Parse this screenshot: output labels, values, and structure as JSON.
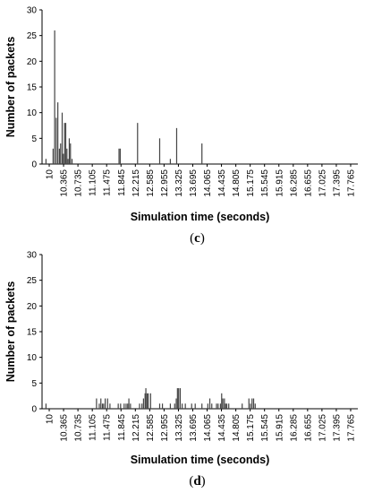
{
  "chart_data": [
    {
      "type": "bar",
      "panel_label": "c",
      "xlabel": "Simulation time (seconds)",
      "ylabel": "Number of packets",
      "ylim": [
        0,
        30
      ],
      "y_ticks": [
        0,
        5,
        10,
        15,
        20,
        25,
        30
      ],
      "x_ticks": [
        "10",
        "10.365",
        "10.735",
        "11.105",
        "11.475",
        "11.845",
        "12.215",
        "12.585",
        "12.955",
        "13.325",
        "13.695",
        "14.065",
        "14.435",
        "14.805",
        "15.175",
        "15.545",
        "15.915",
        "16.285",
        "16.655",
        "17.025",
        "17.395",
        "17.765"
      ],
      "xlim": [
        10.0,
        18.0
      ],
      "grid": false,
      "legend": "none",
      "bar_color": "#444444",
      "x": [
        10.1,
        10.28,
        10.32,
        10.36,
        10.4,
        10.44,
        10.47,
        10.51,
        10.54,
        10.57,
        10.6,
        10.63,
        10.66,
        10.69,
        10.72,
        10.76,
        11.95,
        11.98,
        12.42,
        12.98,
        13.25,
        13.41,
        14.05
      ],
      "values": [
        1,
        3,
        26,
        9,
        12,
        3,
        4,
        10,
        2,
        8,
        8,
        3,
        1,
        5,
        4,
        1,
        3,
        3,
        8,
        5,
        1,
        7,
        4
      ]
    },
    {
      "type": "bar",
      "panel_label": "d",
      "xlabel": "Simulation time (seconds)",
      "ylabel": "Number of packets",
      "ylim": [
        0,
        30
      ],
      "y_ticks": [
        0,
        5,
        10,
        15,
        20,
        25,
        30
      ],
      "x_ticks": [
        "10",
        "10.365",
        "10.735",
        "11.105",
        "11.475",
        "11.845",
        "12.215",
        "12.585",
        "12.955",
        "13.325",
        "13.695",
        "14.065",
        "14.435",
        "14.805",
        "15.175",
        "15.545",
        "15.915",
        "16.285",
        "16.655",
        "17.025",
        "17.395",
        "17.765"
      ],
      "xlim": [
        10.0,
        18.0
      ],
      "grid": false,
      "legend": "none",
      "bar_color": "#444444",
      "x": [
        10.1,
        11.38,
        11.45,
        11.49,
        11.53,
        11.56,
        11.6,
        11.66,
        11.72,
        11.93,
        11.99,
        12.08,
        12.13,
        12.17,
        12.2,
        12.24,
        12.47,
        12.53,
        12.57,
        12.61,
        12.63,
        12.66,
        12.69,
        12.75,
        12.98,
        13.05,
        13.25,
        13.36,
        13.4,
        13.43,
        13.46,
        13.5,
        13.55,
        13.63,
        13.79,
        13.88,
        14.05,
        14.2,
        14.25,
        14.3,
        14.42,
        14.46,
        14.52,
        14.55,
        14.58,
        14.62,
        14.65,
        14.68,
        14.73,
        15.07,
        15.24,
        15.28,
        15.32,
        15.36,
        15.4
      ],
      "values": [
        1,
        2,
        1,
        2,
        1,
        1,
        2,
        2,
        1,
        1,
        1,
        1,
        1,
        1,
        2,
        1,
        1,
        1,
        2,
        3,
        4,
        3,
        3,
        3,
        1,
        1,
        1,
        1,
        2,
        4,
        4,
        4,
        1,
        1,
        1,
        1,
        1,
        1,
        2,
        1,
        1,
        1,
        1,
        3,
        2,
        2,
        1,
        1,
        1,
        1,
        2,
        1,
        2,
        2,
        1
      ]
    }
  ]
}
